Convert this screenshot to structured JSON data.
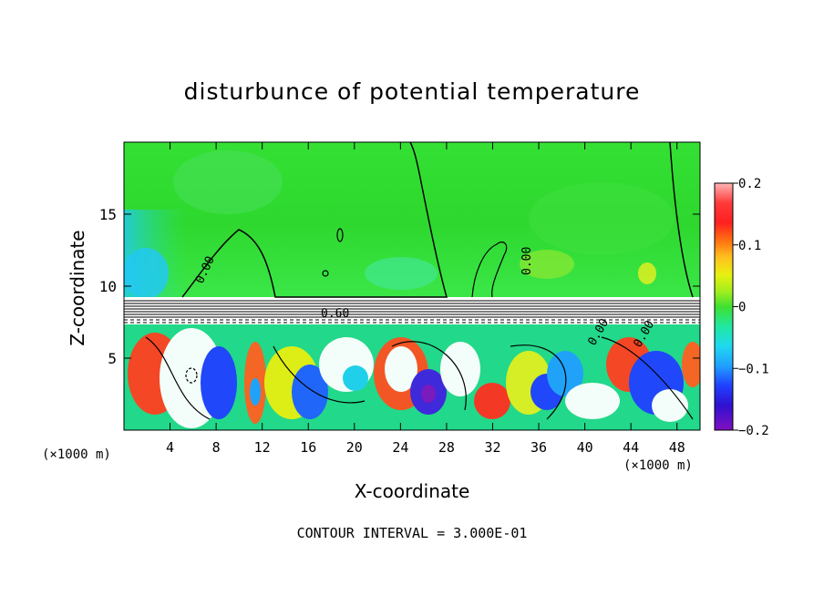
{
  "chart_data": {
    "type": "heatmap",
    "title": "disturbunce of potential temperature",
    "xlabel": "X-coordinate",
    "ylabel": "Z-coordinate",
    "x_unit_label": "(×1000 m)",
    "xlim": [
      0,
      50
    ],
    "ylim": [
      0,
      20
    ],
    "x_ticks": [
      "4",
      "8",
      "12",
      "16",
      "20",
      "24",
      "28",
      "32",
      "36",
      "40",
      "44",
      "48"
    ],
    "y_ticks": [
      "5",
      "10",
      "15"
    ],
    "colorbar": {
      "range": [
        -0.2,
        0.2
      ],
      "tick_labels": [
        "0.2",
        "0.1",
        "0",
        "−0.1",
        "−0.2"
      ]
    },
    "contour_labels": [
      "0.00",
      "0.00",
      "0.60",
      "0.00",
      "0.00"
    ],
    "annotation": "CONTOUR INTERVAL = 3.000E-01"
  }
}
